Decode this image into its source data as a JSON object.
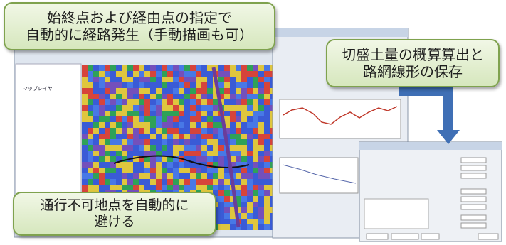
{
  "callouts": {
    "top": [
      "始終点および経由点の指定で",
      "自動的に経路発生（手動描画も可）"
    ],
    "right": [
      "切盛土量の概算算出と",
      "路網線形の保存"
    ],
    "bottom": [
      "通行不可地点を自動的に",
      "避ける"
    ]
  },
  "layer_panel": {
    "title": "マップレイヤ"
  }
}
